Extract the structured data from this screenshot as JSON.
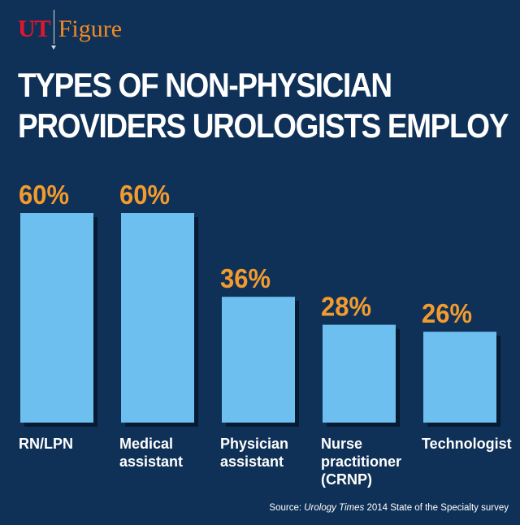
{
  "brand": {
    "left": "UT",
    "right": "Figure"
  },
  "title_lines": [
    "TYPES OF NON-PHYSICIAN",
    "PROVIDERS UROLOGISTS EMPLOY"
  ],
  "source": {
    "prefix": "Source: ",
    "publication": "Urology Times",
    "suffix": " 2014 State of the Specialty survey"
  },
  "colors": {
    "background": "#0f3157",
    "bar": "#6cbfee",
    "bar_shadow": "#061b31",
    "value_label": "#f39b2e",
    "text": "#ffffff"
  },
  "chart_data": {
    "type": "bar",
    "categories": [
      "RN/LPN",
      "Medical assistant",
      "Physician assistant",
      "Nurse practitioner (CRNP)",
      "Technologist"
    ],
    "category_lines": [
      [
        "RN/LPN"
      ],
      [
        "Medical",
        "assistant"
      ],
      [
        "Physician",
        "assistant"
      ],
      [
        "Nurse",
        "practitioner",
        "(CRNP)"
      ],
      [
        "Technologist"
      ]
    ],
    "values": [
      60,
      60,
      36,
      28,
      26
    ],
    "value_labels": [
      "60%",
      "60%",
      "36%",
      "28%",
      "26%"
    ],
    "unit": "%",
    "title": "TYPES OF NON-PHYSICIAN PROVIDERS UROLOGISTS EMPLOY",
    "xlabel": "",
    "ylabel": "",
    "ylim": [
      0,
      60
    ],
    "grid": false
  }
}
